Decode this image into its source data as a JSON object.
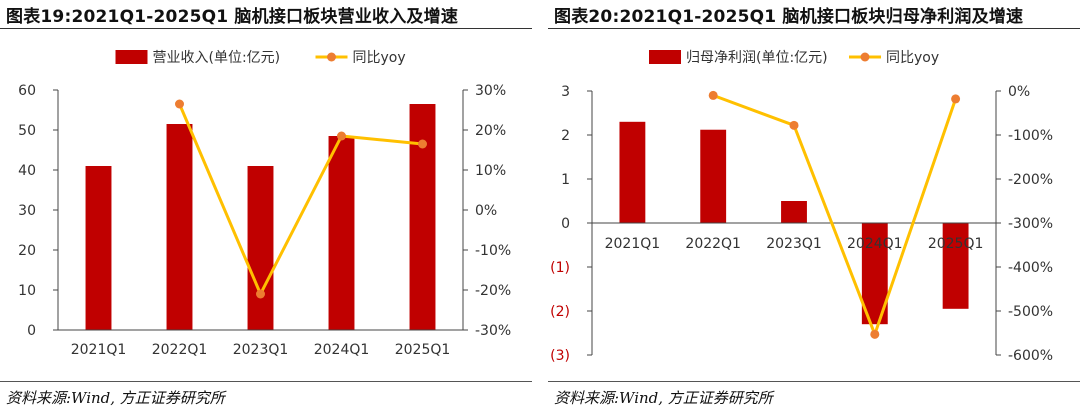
{
  "figures": [
    {
      "title": "图表19:2021Q1-2025Q1 脑机接口板块营业收入及增速",
      "source": "资料来源:Wind, 方正证券研究所"
    },
    {
      "title": "图表20:2021Q1-2025Q1 脑机接口板块归母净利润及增速",
      "source": "资料来源:Wind, 方正证券研究所"
    }
  ],
  "chart_data": [
    {
      "type": "bar",
      "categories": [
        "2021Q1",
        "2022Q1",
        "2023Q1",
        "2024Q1",
        "2025Q1"
      ],
      "series": [
        {
          "name": "营业收入(单位:亿元)",
          "kind": "bar",
          "axis": "left",
          "color": "#c00000",
          "values": [
            41,
            51.5,
            41,
            48.5,
            56.5
          ]
        },
        {
          "name": "同比yoy",
          "kind": "line",
          "axis": "right",
          "color": "#ffc000",
          "marker_color": "#ed7d31",
          "values": [
            null,
            26.5,
            -21,
            18.5,
            16.5
          ]
        }
      ],
      "y_left": {
        "min": 0,
        "max": 60,
        "step": 10,
        "ticks": [
          "0",
          "10",
          "20",
          "30",
          "40",
          "50",
          "60"
        ]
      },
      "y_right": {
        "min": -30,
        "max": 30,
        "step": 10,
        "ticks": [
          "-30%",
          "-20%",
          "-10%",
          "0%",
          "10%",
          "20%",
          "30%"
        ]
      },
      "legend_position": "top",
      "grid": false
    },
    {
      "type": "bar",
      "categories": [
        "2021Q1",
        "2022Q1",
        "2023Q1",
        "2024Q1",
        "2025Q1"
      ],
      "series": [
        {
          "name": "归母净利润(单位:亿元)",
          "kind": "bar",
          "axis": "left",
          "color": "#c00000",
          "values": [
            2.3,
            2.12,
            0.5,
            -2.3,
            -1.95
          ]
        },
        {
          "name": "同比yoy",
          "kind": "line",
          "axis": "right",
          "color": "#ffc000",
          "marker_color": "#ed7d31",
          "values": [
            null,
            -10,
            -78,
            -553,
            -18
          ]
        }
      ],
      "y_left": {
        "min": -3,
        "max": 3,
        "step": 1,
        "ticks": [
          "(3)",
          "(2)",
          "(1)",
          "0",
          "1",
          "2",
          "3"
        ],
        "negative_tick_color": "#c00000"
      },
      "y_right": {
        "min": -600,
        "max": 0,
        "step": 100,
        "ticks": [
          "-600%",
          "-500%",
          "-400%",
          "-300%",
          "-200%",
          "-100%",
          "0%"
        ]
      },
      "legend_position": "top",
      "grid": false
    }
  ]
}
